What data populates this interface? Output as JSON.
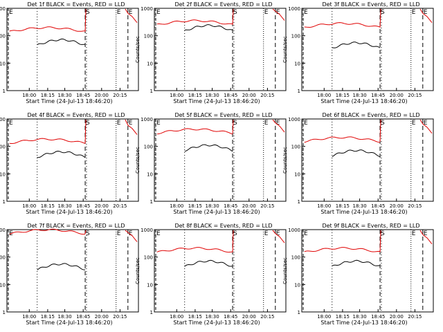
{
  "chart_data": {
    "type": "line",
    "xlabel": "Start Time (24-Jul-13 18:46:20)",
    "ylabel": "Counts/sec",
    "x_ticks": [
      "18:00",
      "18:15",
      "18:30",
      "18:45",
      "20:00",
      "20:15"
    ],
    "y_ticks": [
      "1",
      "10",
      "100",
      "1000"
    ],
    "y_scale": "log",
    "ylim": [
      1,
      1000
    ],
    "vline_labels": [
      "E",
      "S",
      "E",
      "E"
    ],
    "colors": {
      "events": "#000000",
      "lld": "#e00000"
    },
    "panels": [
      {
        "title": "Det 1f BLACK = Events, RED = LLD",
        "red": 140,
        "black": 45,
        "red_post": 500
      },
      {
        "title": "Det 2f BLACK = Events, RED = LLD",
        "red": 250,
        "black": 150,
        "red_post": 600
      },
      {
        "title": "Det 3f BLACK = Events, RED = LLD",
        "red": 200,
        "black": 35,
        "red_post": 500
      },
      {
        "title": "Det 4f BLACK = Events, RED = LLD",
        "red": 130,
        "black": 40,
        "red_post": 450
      },
      {
        "title": "Det 5f BLACK = Events, RED = LLD",
        "red": 300,
        "black": 70,
        "red_post": 550
      },
      {
        "title": "Det 6f BLACK = Events, RED = LLD",
        "red": 150,
        "black": 45,
        "red_post": 500
      },
      {
        "title": "Det 7f BLACK = Events, RED = LLD",
        "red": 700,
        "black": 35,
        "red_post": 600
      },
      {
        "title": "Det 8f BLACK = Events, RED = LLD",
        "red": 150,
        "black": 45,
        "red_post": 550
      },
      {
        "title": "Det 9f BLACK = Events, RED = LLD",
        "red": 150,
        "black": 45,
        "red_post": 500
      }
    ]
  }
}
